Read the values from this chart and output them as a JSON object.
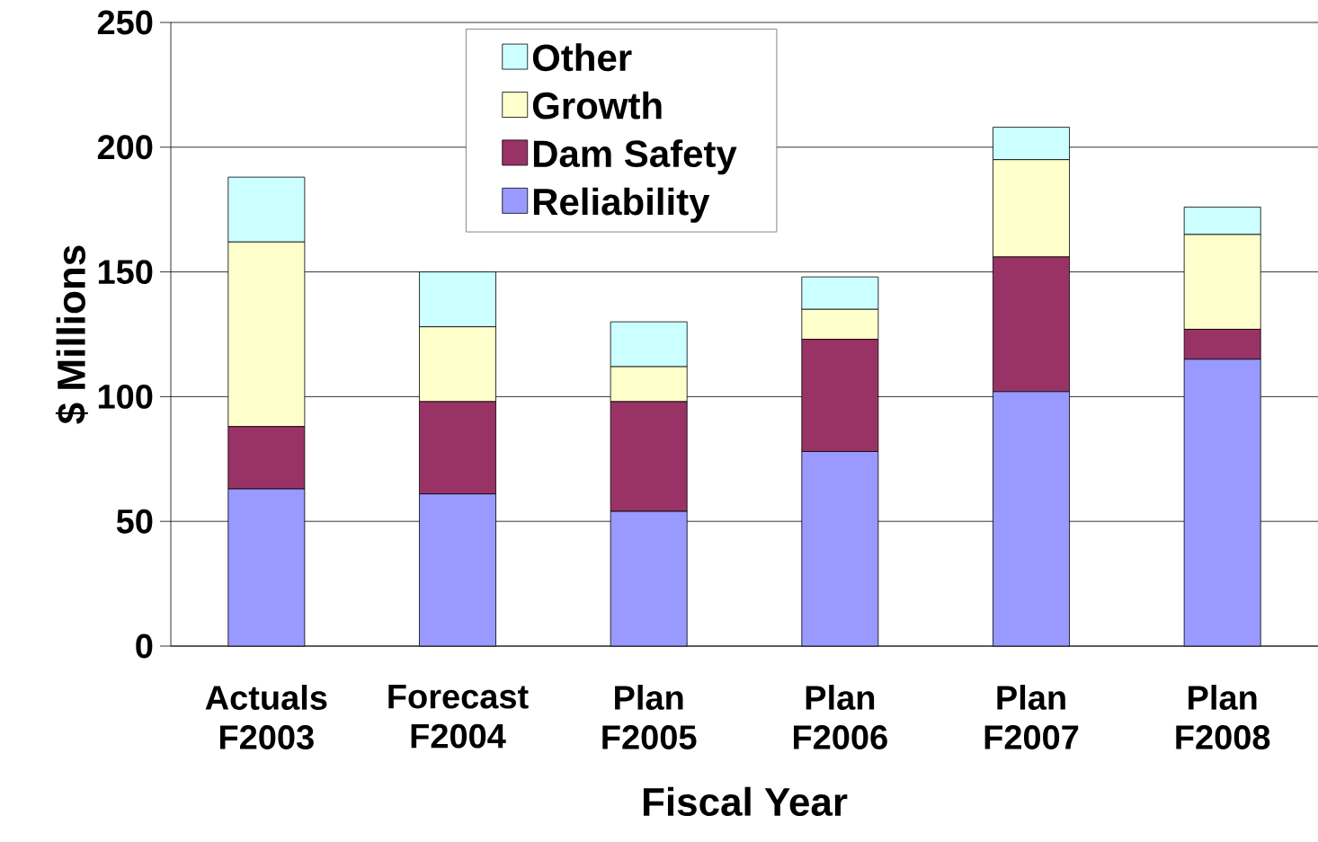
{
  "chart_data": {
    "type": "bar",
    "stacked": true,
    "xlabel": "Fiscal Year",
    "ylabel": "$ Millions",
    "categories": [
      "Actuals F2003",
      "Forecast F2004",
      "Plan F2005",
      "Plan F2006",
      "Plan F2007",
      "Plan F2008"
    ],
    "series": [
      {
        "name": "Reliability",
        "color": "#9999ff",
        "values": [
          63,
          61,
          54,
          78,
          102,
          115
        ]
      },
      {
        "name": "Dam Safety",
        "color": "#993366",
        "values": [
          25,
          37,
          44,
          45,
          54,
          12
        ]
      },
      {
        "name": "Growth",
        "color": "#ffffcc",
        "values": [
          74,
          30,
          14,
          12,
          39,
          38
        ]
      },
      {
        "name": "Other",
        "color": "#ccffff",
        "values": [
          26,
          22,
          18,
          13,
          13,
          11
        ]
      }
    ],
    "ylim": [
      0,
      250
    ],
    "yticks": [
      0,
      50,
      100,
      150,
      200,
      250
    ],
    "grid": "y",
    "legend": "top"
  }
}
